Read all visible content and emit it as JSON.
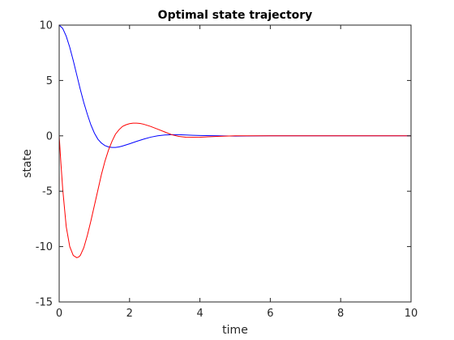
{
  "chart_data": {
    "type": "line",
    "title": "Optimal state trajectory",
    "xlabel": "time",
    "ylabel": "state",
    "xlim": [
      0,
      10
    ],
    "ylim": [
      -15,
      10
    ],
    "xticks": [
      0,
      2,
      4,
      6,
      8,
      10
    ],
    "yticks": [
      -15,
      -10,
      -5,
      0,
      5,
      10
    ],
    "grid": false,
    "legend": "none",
    "series": [
      {
        "color": "#0000ff",
        "x": [
          0,
          0.1,
          0.2,
          0.3,
          0.4,
          0.5,
          0.6,
          0.7,
          0.8,
          0.9,
          1.0,
          1.1,
          1.2,
          1.3,
          1.4,
          1.5,
          1.6,
          1.7,
          1.8,
          1.9,
          2.0,
          2.2,
          2.4,
          2.6,
          2.8,
          3.0,
          3.2,
          3.4,
          3.6,
          3.8,
          4.0,
          4.5,
          5.0,
          6.0,
          7.0,
          8.0,
          9.0,
          10.0
        ],
        "y": [
          10,
          9.7,
          9.0,
          8.0,
          6.8,
          5.5,
          4.2,
          3.0,
          1.95,
          1.0,
          0.25,
          -0.3,
          -0.65,
          -0.88,
          -1.0,
          -1.05,
          -1.05,
          -1.0,
          -0.92,
          -0.82,
          -0.72,
          -0.5,
          -0.3,
          -0.12,
          0.0,
          0.08,
          0.1,
          0.1,
          0.08,
          0.05,
          0.03,
          0.0,
          -0.02,
          0.0,
          0.0,
          0.0,
          0.0,
          0.0
        ]
      },
      {
        "color": "#ff0000",
        "x": [
          0,
          0.05,
          0.1,
          0.2,
          0.3,
          0.4,
          0.5,
          0.55,
          0.6,
          0.7,
          0.8,
          0.9,
          1.0,
          1.1,
          1.2,
          1.3,
          1.4,
          1.5,
          1.6,
          1.7,
          1.8,
          1.9,
          2.0,
          2.1,
          2.2,
          2.3,
          2.4,
          2.5,
          2.6,
          2.8,
          3.0,
          3.2,
          3.4,
          3.6,
          3.8,
          4.0,
          4.5,
          5.0,
          6.0,
          7.0,
          8.0,
          9.0,
          10.0
        ],
        "y": [
          0,
          -2.5,
          -4.8,
          -8.2,
          -10.0,
          -10.8,
          -11.0,
          -10.95,
          -10.8,
          -10.1,
          -9.0,
          -7.7,
          -6.3,
          -4.9,
          -3.5,
          -2.3,
          -1.3,
          -0.5,
          0.15,
          0.55,
          0.85,
          1.0,
          1.1,
          1.15,
          1.15,
          1.12,
          1.05,
          0.95,
          0.85,
          0.6,
          0.35,
          0.1,
          -0.05,
          -0.12,
          -0.13,
          -0.12,
          -0.05,
          0.0,
          0.0,
          0.0,
          0.0,
          0.0,
          0.0
        ]
      }
    ]
  }
}
